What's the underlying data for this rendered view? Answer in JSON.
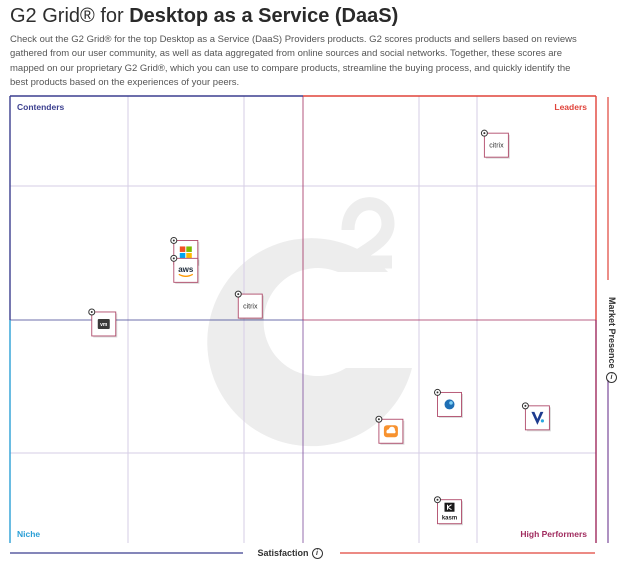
{
  "header": {
    "title_prefix": "G2 Grid® for",
    "title_bold": "Desktop as a Service (DaaS)",
    "description": "Check out the G2 Grid® for the top Desktop as a Service (DaaS) Providers products. G2 scores products and sellers based on reviews gathered from our user community, as well as data aggregated from online sources and social networks. Together, these scores are mapped on our proprietary G2 Grid®, which you can use to compare products, streamline the buying process, and quickly identify the best products based on the experiences of your peers."
  },
  "axes": {
    "x_label": "Satisfaction",
    "y_label": "Market Presence",
    "info_glyph": "i"
  },
  "colors": {
    "contenders": "#3b3f8f",
    "leaders": "#e0433a",
    "niche": "#2a9fd6",
    "high_performers": "#a02b5e",
    "grid_line": "#cfc6e3",
    "watermark": "#ededed"
  },
  "chart_data": {
    "type": "scatter",
    "title": "G2 Grid® for Desktop as a Service (DaaS)",
    "xlabel": "Satisfaction",
    "ylabel": "Market Presence",
    "xlim": [
      0,
      100
    ],
    "ylim": [
      0,
      100
    ],
    "grid": true,
    "quadrants": {
      "top_left": "Contenders",
      "top_right": "Leaders",
      "bottom_left": "Niche",
      "bottom_right": "High Performers"
    },
    "points": [
      {
        "logo": "citrix",
        "icon": "citrix-logo-icon",
        "text": "citrix",
        "x": 83,
        "y": 89
      },
      {
        "logo": "microsoft",
        "icon": "microsoft-logo-icon",
        "text": "",
        "x": 30,
        "y": 65
      },
      {
        "logo": "aws",
        "icon": "aws-logo-icon",
        "text": "aws",
        "x": 30,
        "y": 61
      },
      {
        "logo": "citrix",
        "icon": "citrix-logo-icon",
        "text": "citrix",
        "x": 41,
        "y": 53
      },
      {
        "logo": "vmware",
        "icon": "vmware-logo-icon",
        "text": "vm",
        "x": 16,
        "y": 49
      },
      {
        "logo": "cloud-product",
        "icon": "cloud-logo-icon",
        "text": "",
        "x": 65,
        "y": 25
      },
      {
        "logo": "blue-globe-product",
        "icon": "globe-logo-icon",
        "text": "",
        "x": 75,
        "y": 31
      },
      {
        "logo": "v-product",
        "icon": "v-logo-icon",
        "text": "",
        "x": 90,
        "y": 28
      },
      {
        "logo": "kasm",
        "icon": "kasm-logo-icon",
        "text": "kasm",
        "x": 75,
        "y": 7
      }
    ]
  }
}
